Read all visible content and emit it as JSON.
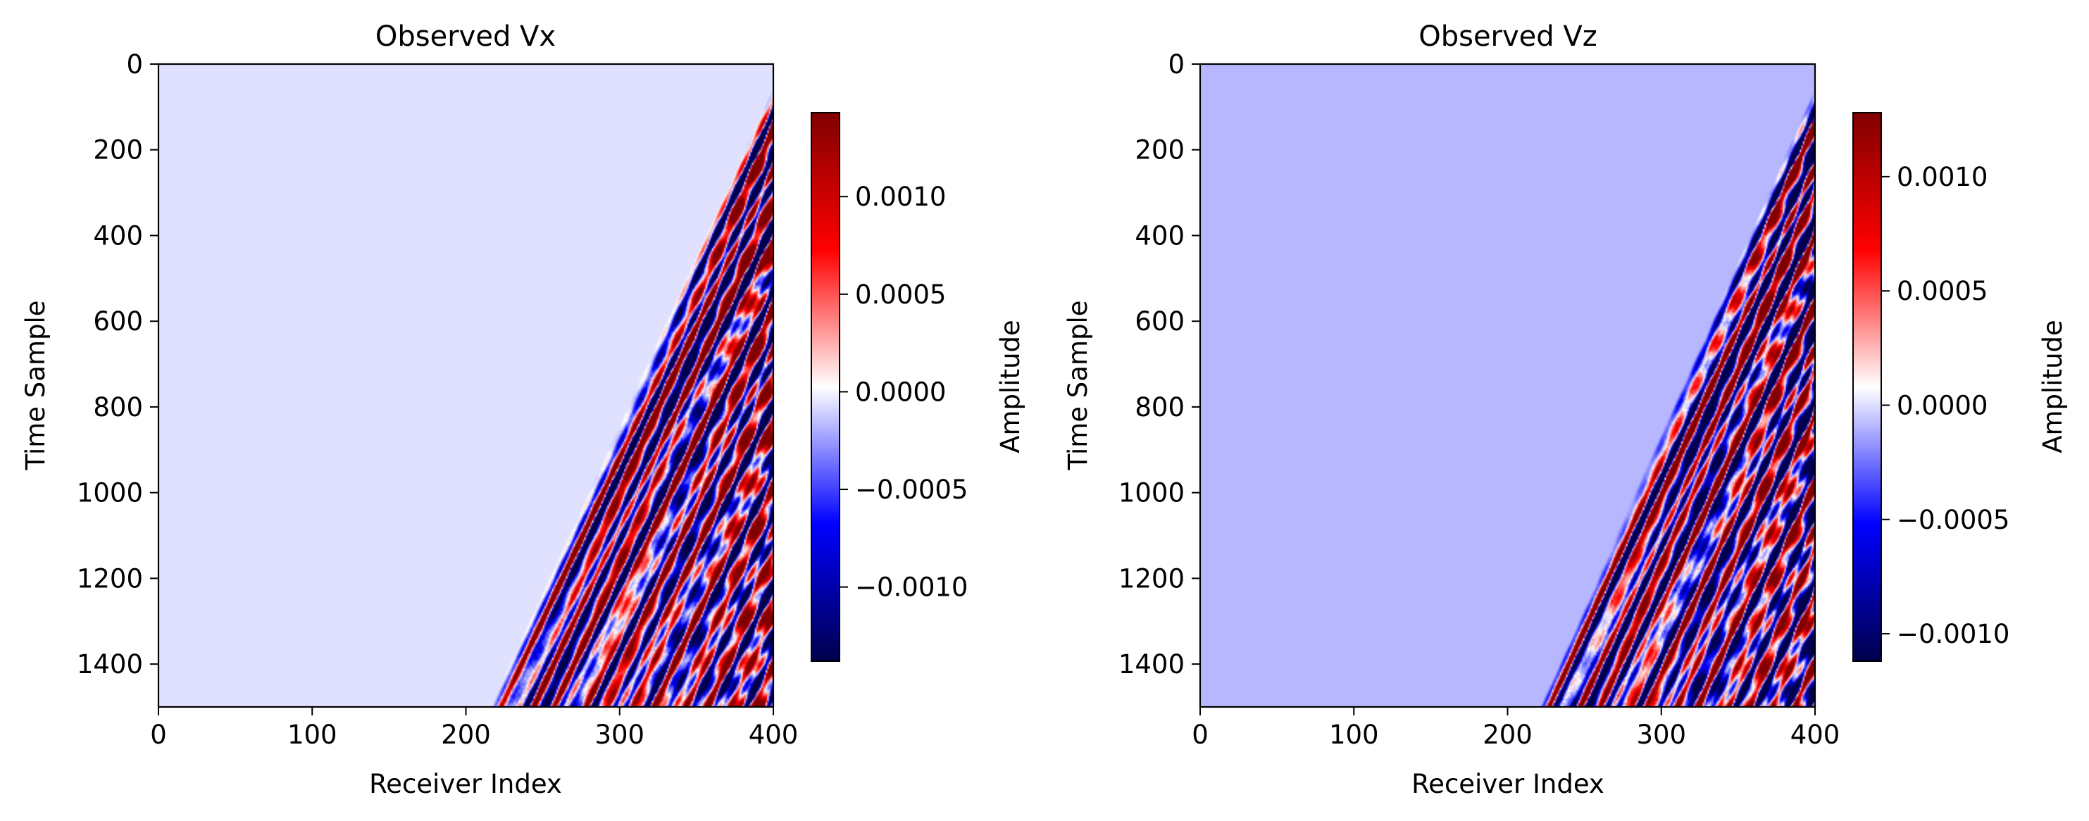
{
  "chart_data": [
    {
      "type": "heatmap",
      "title": "Observed Vx",
      "xlabel": "Receiver Index",
      "ylabel": "Time Sample",
      "xlim": [
        0,
        400
      ],
      "ylim": [
        1500,
        0
      ],
      "y_inverted": true,
      "xticks": [
        0,
        100,
        200,
        300,
        400
      ],
      "yticks": [
        0,
        200,
        400,
        600,
        800,
        1000,
        1200,
        1400
      ],
      "colormap": "seismic",
      "colorbar": {
        "label": "Amplitude",
        "vmin": -0.00138,
        "vmax": 0.00143,
        "ticks": [
          -0.001,
          -0.0005,
          0.0,
          0.0005,
          0.001
        ],
        "tick_labels": [
          "−0.0010",
          "−0.0005",
          "0.0000",
          "0.0005",
          "0.0010"
        ]
      },
      "background_level": -6e-05,
      "first_arrival": {
        "receivers": [
          220,
          400
        ],
        "time_samples": [
          1500,
          90
        ]
      },
      "description_values": {
        "event_onset_receiver_at_t1500": 220,
        "event_onset_time_at_receiver_400": 90
      }
    },
    {
      "type": "heatmap",
      "title": "Observed Vz",
      "xlabel": "Receiver Index",
      "ylabel": "Time Sample",
      "xlim": [
        0,
        400
      ],
      "ylim": [
        1500,
        0
      ],
      "y_inverted": true,
      "xticks": [
        0,
        100,
        200,
        300,
        400
      ],
      "yticks": [
        0,
        200,
        400,
        600,
        800,
        1000,
        1200,
        1400
      ],
      "colormap": "seismic",
      "colorbar": {
        "label": "Amplitude",
        "vmin": -0.00112,
        "vmax": 0.00128,
        "ticks": [
          -0.001,
          -0.0005,
          0.0,
          0.0005,
          0.001
        ],
        "tick_labels": [
          "−0.0010",
          "−0.0005",
          "0.0000",
          "0.0005",
          "0.0010"
        ]
      },
      "background_level": -9e-05,
      "first_arrival": {
        "receivers": [
          225,
          400
        ],
        "time_samples": [
          1500,
          90
        ]
      }
    }
  ],
  "colors": {
    "seismic_low": "#00004c",
    "seismic_mid_low": "#0000ff",
    "seismic_center": "#ffffff",
    "seismic_mid_high": "#ff0000",
    "seismic_high": "#800000"
  }
}
